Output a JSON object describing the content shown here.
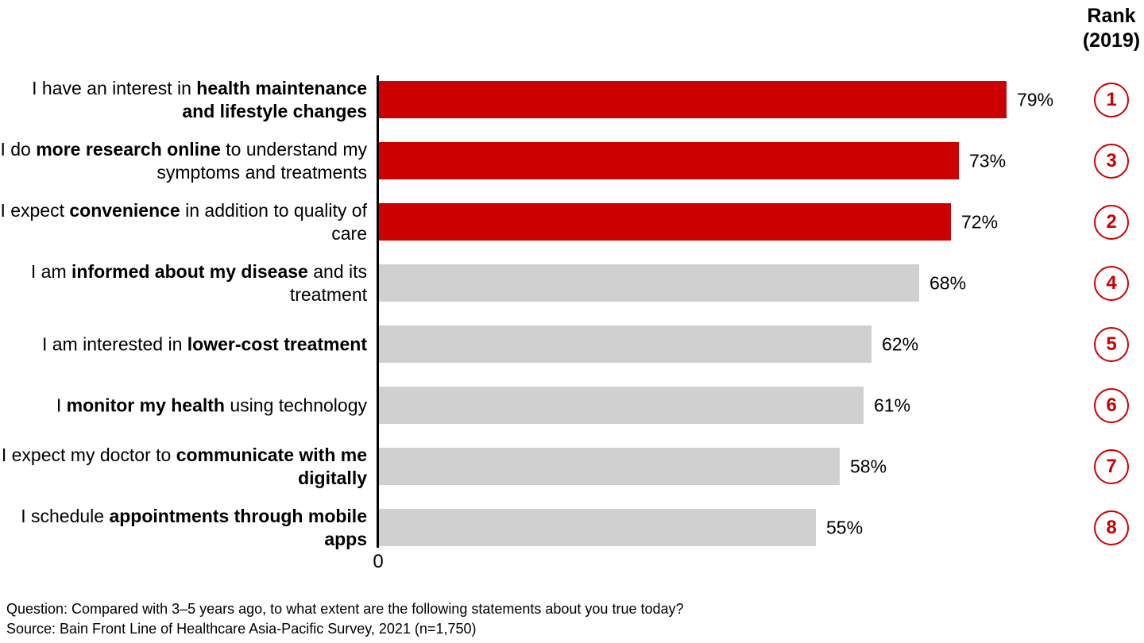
{
  "rank_header": {
    "line1": "Rank",
    "line2": "(2019)"
  },
  "footer": {
    "question": "Question: Compared with 3–5 years ago, to what extent are the following statements about you true today?",
    "source": "Source: Bain Front Line of Healthcare Asia-Pacific Survey, 2021 (n=1,750)"
  },
  "chart_data": {
    "type": "bar",
    "orientation": "horizontal",
    "unit": "percent",
    "x_axis_origin_label": "0",
    "xlim": [
      0,
      100
    ],
    "grid": false,
    "legend": null,
    "colors": {
      "red": "#CC0000",
      "gray": "#D0D0D0",
      "rank_circle": "#CC0000"
    },
    "bars": [
      {
        "label_segments": [
          {
            "text": "I have an interest in ",
            "bold": false
          },
          {
            "text": "health maintenance and lifestyle changes",
            "bold": true
          }
        ],
        "value": 79,
        "value_label": "79%",
        "color": "red",
        "rank": "1"
      },
      {
        "label_segments": [
          {
            "text": "I do ",
            "bold": false
          },
          {
            "text": "more research online",
            "bold": true
          },
          {
            "text": " to understand my symptoms and treatments",
            "bold": false
          }
        ],
        "value": 73,
        "value_label": "73%",
        "color": "red",
        "rank": "3"
      },
      {
        "label_segments": [
          {
            "text": "I expect ",
            "bold": false
          },
          {
            "text": "convenience",
            "bold": true
          },
          {
            "text": " in addition to quality of care",
            "bold": false
          }
        ],
        "value": 72,
        "value_label": "72%",
        "color": "red",
        "rank": "2"
      },
      {
        "label_segments": [
          {
            "text": "I am ",
            "bold": false
          },
          {
            "text": "informed about my disease",
            "bold": true
          },
          {
            "text": " and its treatment",
            "bold": false
          }
        ],
        "value": 68,
        "value_label": "68%",
        "color": "gray",
        "rank": "4"
      },
      {
        "label_segments": [
          {
            "text": "I am interested in ",
            "bold": false
          },
          {
            "text": "lower-cost treatment",
            "bold": true
          }
        ],
        "value": 62,
        "value_label": "62%",
        "color": "gray",
        "rank": "5"
      },
      {
        "label_segments": [
          {
            "text": "I ",
            "bold": false
          },
          {
            "text": "monitor my health",
            "bold": true
          },
          {
            "text": " using technology",
            "bold": false
          }
        ],
        "value": 61,
        "value_label": "61%",
        "color": "gray",
        "rank": "6"
      },
      {
        "label_segments": [
          {
            "text": "I expect my doctor to ",
            "bold": false
          },
          {
            "text": "communicate with me digitally",
            "bold": true
          }
        ],
        "value": 58,
        "value_label": "58%",
        "color": "gray",
        "rank": "7"
      },
      {
        "label_segments": [
          {
            "text": "I schedule ",
            "bold": false
          },
          {
            "text": "appointments through mobile apps",
            "bold": true
          }
        ],
        "value": 55,
        "value_label": "55%",
        "color": "gray",
        "rank": "8"
      }
    ]
  }
}
